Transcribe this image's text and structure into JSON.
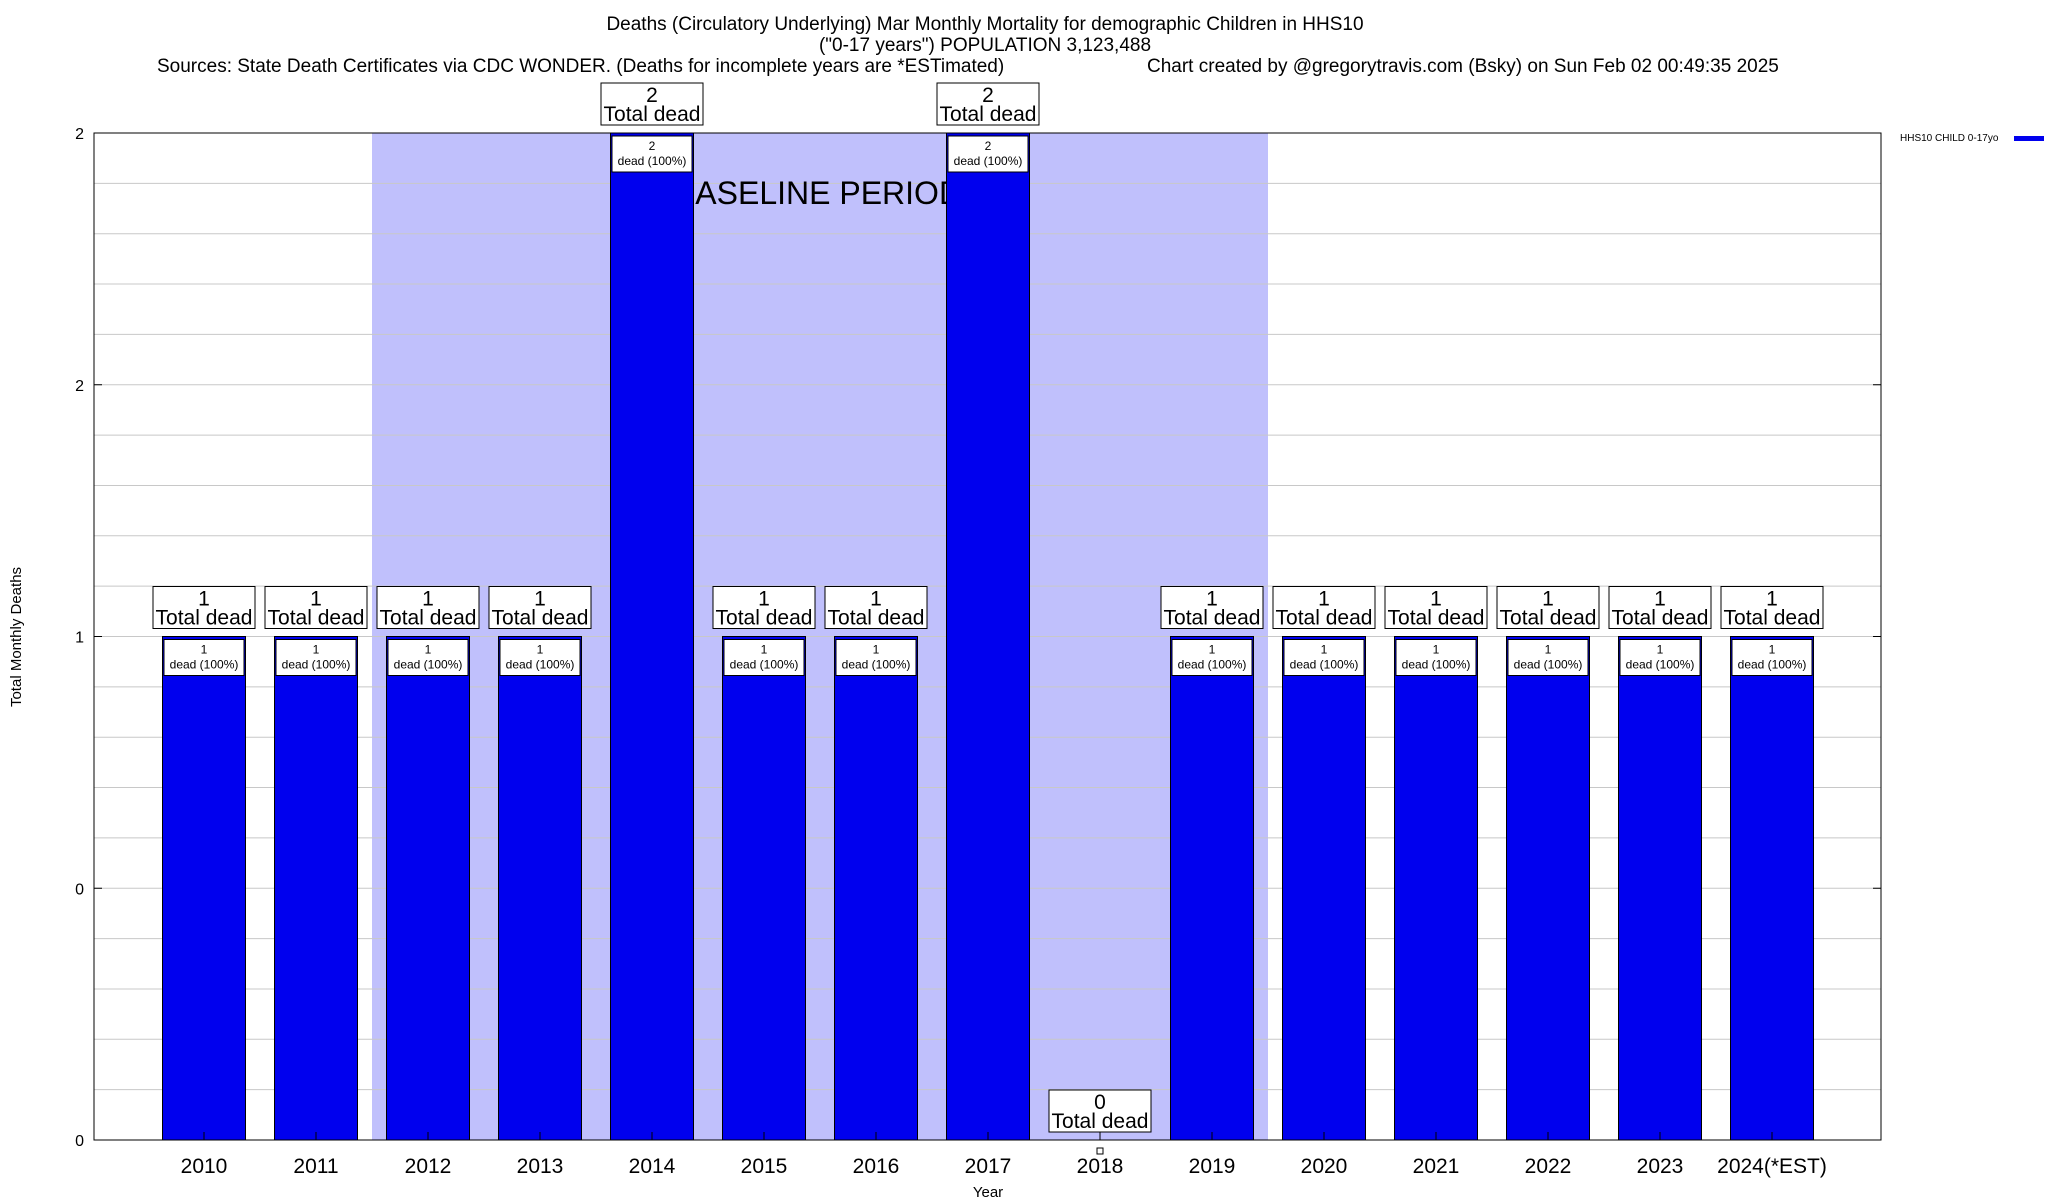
{
  "chart_data": {
    "type": "bar",
    "title_lines": [
      "Deaths (Circulatory Underlying) Mar Monthly Mortality for demographic Children in HHS10",
      "(\"0-17 years\") POPULATION 3,123,488"
    ],
    "sources": "Sources: State Death Certificates via CDC WONDER. (Deaths for incomplete years are *ESTimated)",
    "credit": "Chart created by @gregorytravis.com (Bsky) on Sun Feb 02 00:49:35 2025",
    "xlabel": "Year",
    "ylabel": "Total Monthly Deaths",
    "categories": [
      "2010",
      "2011",
      "2012",
      "2013",
      "2014",
      "2015",
      "2016",
      "2017",
      "2018",
      "2019",
      "2020",
      "2021",
      "2022",
      "2023",
      "2024(*EST)"
    ],
    "series": [
      {
        "name": "HHS10 CHILD 0-17yo",
        "color": "#0000ee",
        "values": [
          1,
          1,
          1,
          1,
          2,
          1,
          1,
          2,
          0,
          1,
          1,
          1,
          1,
          1,
          1
        ]
      }
    ],
    "top_labels": {
      "numbers": [
        "1",
        "1",
        "1",
        "1",
        "2",
        "1",
        "1",
        "2",
        "0",
        "1",
        "1",
        "1",
        "1",
        "1",
        "1"
      ],
      "suffix": "Total dead"
    },
    "inner_labels": {
      "numbers": [
        "1",
        "1",
        "1",
        "1",
        "2",
        "1",
        "1",
        "2",
        "",
        "1",
        "1",
        "1",
        "1",
        "1",
        "1"
      ],
      "suffix": "dead (100%)"
    },
    "ytick_labels": [
      "0",
      "0",
      "1",
      "2",
      "2"
    ],
    "ytick_values": [
      0,
      0.5,
      1,
      1.5,
      2
    ],
    "ylim": [
      0,
      2
    ],
    "grid": true,
    "baseline_period": {
      "label": "BASELINE PERIOD",
      "start": "2012",
      "end": "2019",
      "color": "#c0c0fc"
    },
    "legend_position": "top-right"
  }
}
